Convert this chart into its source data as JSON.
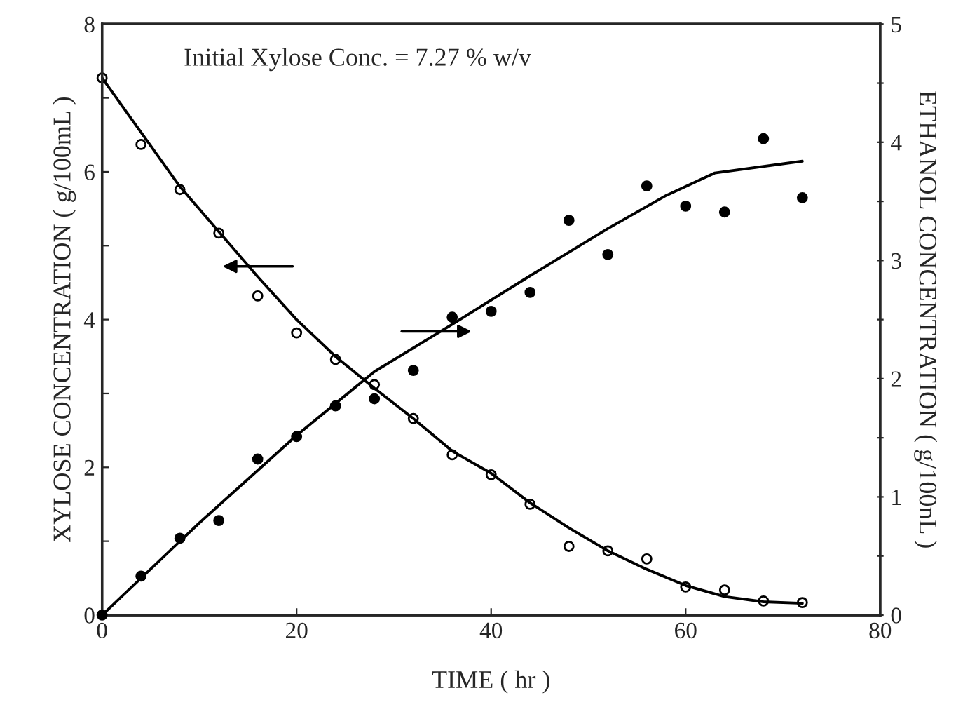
{
  "chart_data": {
    "type": "scatter",
    "xlabel": "TIME ( hr )",
    "ylabel": "XYLOSE CONCENTRATION ( g/100mL )",
    "y2label": "ETHANOL CONCENTRATION ( g/100nL )",
    "annotations": [
      "Initial Xylose Conc. = 7.27 % w/v"
    ],
    "xlim": [
      0,
      80
    ],
    "xticks": [
      0,
      20,
      40,
      60,
      80
    ],
    "ylim": [
      0,
      8
    ],
    "yticks": [
      0,
      {
        "value": 1,
        "label": null
      },
      2,
      {
        "value": 3,
        "label": null
      },
      4,
      {
        "value": 5,
        "label": null
      },
      6,
      {
        "value": 7,
        "label": null
      },
      8
    ],
    "y2lim": [
      0,
      5
    ],
    "y2ticks": [
      0,
      {
        "value": 0.5,
        "label": null
      },
      1,
      {
        "value": 1.5,
        "label": null
      },
      2,
      {
        "value": 2.5,
        "label": null
      },
      3,
      {
        "value": 3.5,
        "label": null
      },
      4,
      {
        "value": 4.5,
        "label": null
      },
      5
    ],
    "grid": false,
    "legend": false,
    "series": [
      {
        "marker": "circle",
        "color": "#000000",
        "x": [
          0,
          4,
          8,
          12,
          16,
          20,
          24,
          28,
          32,
          36,
          40,
          44,
          48,
          52,
          56,
          60,
          64,
          68,
          72
        ],
        "values": [
          7.27,
          6.37,
          5.76,
          5.17,
          4.32,
          3.82,
          3.46,
          3.12,
          2.66,
          2.17,
          1.9,
          1.5,
          0.93,
          0.87,
          0.76,
          0.38,
          0.34,
          0.19,
          0.17
        ]
      },
      {
        "type": "line",
        "marker": "none",
        "line_style": "solid",
        "color": "#000000",
        "x": [
          0,
          8,
          16,
          20,
          24,
          28,
          32,
          36,
          40,
          44,
          48,
          52,
          56,
          60,
          64,
          68,
          72
        ],
        "values": [
          7.27,
          5.8,
          4.58,
          4.0,
          3.5,
          3.07,
          2.66,
          2.22,
          1.92,
          1.52,
          1.18,
          0.87,
          0.62,
          0.4,
          0.25,
          0.18,
          0.16
        ]
      },
      {
        "axis": "y2",
        "marker": "circle",
        "color": "#000000",
        "x": [
          0,
          4,
          8,
          12,
          16,
          20,
          24,
          28,
          32,
          36,
          40,
          44,
          48,
          52,
          56,
          60,
          64,
          68,
          72
        ],
        "values": [
          0,
          0.33,
          0.65,
          0.8,
          1.32,
          1.51,
          1.77,
          1.83,
          2.07,
          2.52,
          2.57,
          2.73,
          3.34,
          3.05,
          3.63,
          3.46,
          3.41,
          4.03,
          3.53
        ]
      },
      {
        "type": "line",
        "axis": "y2",
        "marker": "none",
        "line_style": "solid",
        "color": "#000000",
        "x": [
          0,
          10,
          20,
          28,
          36,
          44,
          52,
          58,
          63,
          72
        ],
        "values": [
          0,
          0.78,
          1.52,
          2.06,
          2.46,
          2.87,
          3.27,
          3.55,
          3.74,
          3.84
        ]
      }
    ]
  }
}
